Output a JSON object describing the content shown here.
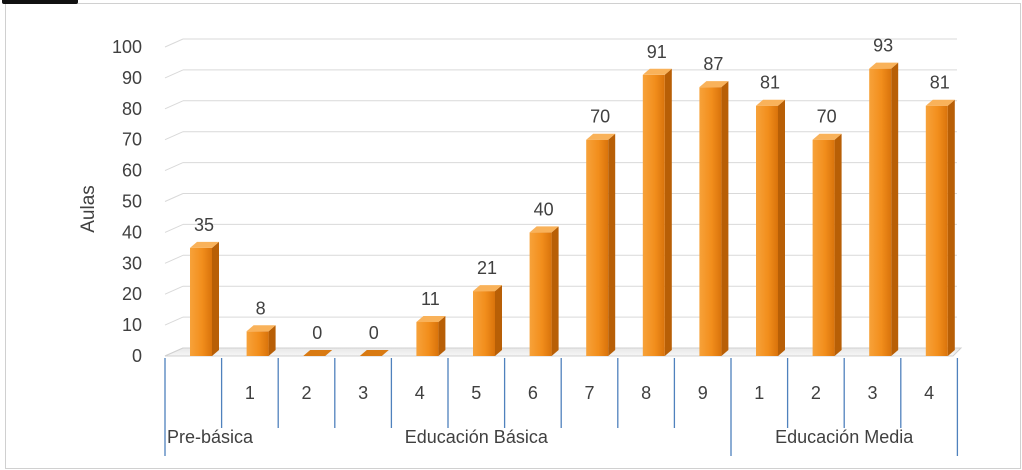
{
  "chart_data": {
    "type": "bar",
    "ylabel": "Aulas",
    "ylim": [
      0,
      100
    ],
    "yticks": [
      0,
      10,
      20,
      30,
      40,
      50,
      60,
      70,
      80,
      90,
      100
    ],
    "bar_color": "#F28E1C",
    "grid": true,
    "categories": [
      "",
      "1",
      "2",
      "3",
      "4",
      "5",
      "6",
      "7",
      "8",
      "9",
      "1",
      "2",
      "3",
      "4"
    ],
    "values": [
      35,
      8,
      0,
      0,
      11,
      21,
      40,
      70,
      91,
      87,
      81,
      70,
      93,
      81
    ],
    "groups": [
      {
        "label": "Pre-básica",
        "span": 1
      },
      {
        "label": "Educación Básica",
        "span": 9
      },
      {
        "label": "Educación Media",
        "span": 4
      }
    ]
  }
}
